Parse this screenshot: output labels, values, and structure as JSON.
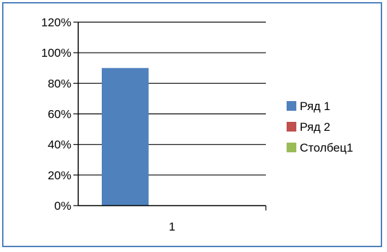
{
  "chart_data": {
    "type": "bar",
    "categories": [
      "1"
    ],
    "series": [
      {
        "name": "Ряд 1",
        "values": [
          0.9
        ],
        "color": "#4f81bd"
      },
      {
        "name": "Ряд 2",
        "values": [
          0
        ],
        "color": "#c0504d"
      },
      {
        "name": "Столбец1",
        "values": [
          0
        ],
        "color": "#9bbb59"
      }
    ],
    "y_ticks": [
      "0%",
      "20%",
      "40%",
      "60%",
      "80%",
      "100%",
      "120%"
    ],
    "ylim": [
      0,
      1.2
    ],
    "title": "",
    "xlabel": "",
    "ylabel": "",
    "grid": true,
    "legend_position": "right"
  }
}
